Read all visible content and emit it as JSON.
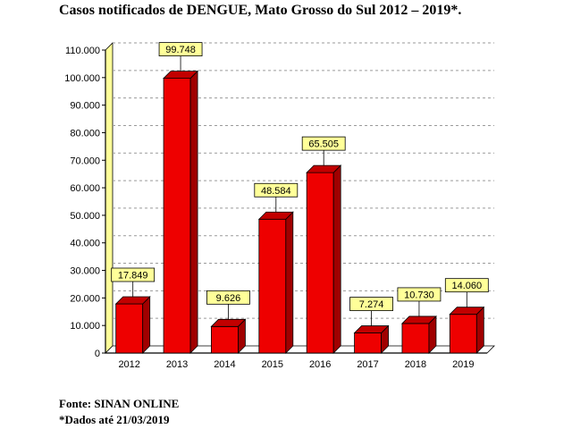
{
  "chart_data": {
    "type": "bar",
    "title": "Casos notificados de DENGUE, Mato Grosso do Sul 2012 – 2019*.",
    "categories": [
      "2012",
      "2013",
      "2014",
      "2015",
      "2016",
      "2017",
      "2018",
      "2019"
    ],
    "values": [
      17849,
      99748,
      9626,
      48584,
      65505,
      7274,
      10730,
      14060
    ],
    "data_labels": [
      "17.849",
      "99.748",
      "9.626",
      "48.584",
      "65.505",
      "7.274",
      "10.730",
      "14.060"
    ],
    "xlabel": "",
    "ylabel": "",
    "ylim": [
      0,
      110000
    ],
    "yticks": [
      0,
      10000,
      20000,
      30000,
      40000,
      50000,
      60000,
      70000,
      80000,
      90000,
      100000,
      110000
    ],
    "ytick_labels": [
      "0",
      "10.000",
      "20.000",
      "30.000",
      "40.000",
      "50.000",
      "60.000",
      "70.000",
      "80.000",
      "90.000",
      "100.000",
      "110.000"
    ],
    "grid": true,
    "legend": "none",
    "colors": {
      "bar_front": "#ee0000",
      "bar_side": "#a00000",
      "bar_top": "#c20000",
      "label_bg": "#ffff99",
      "wall_left": "#ffff99",
      "grid": "#9a9a9a"
    }
  },
  "notes": {
    "source": "Fonte: SINAN ONLINE",
    "date": "*Dados até 21/03/2019"
  }
}
